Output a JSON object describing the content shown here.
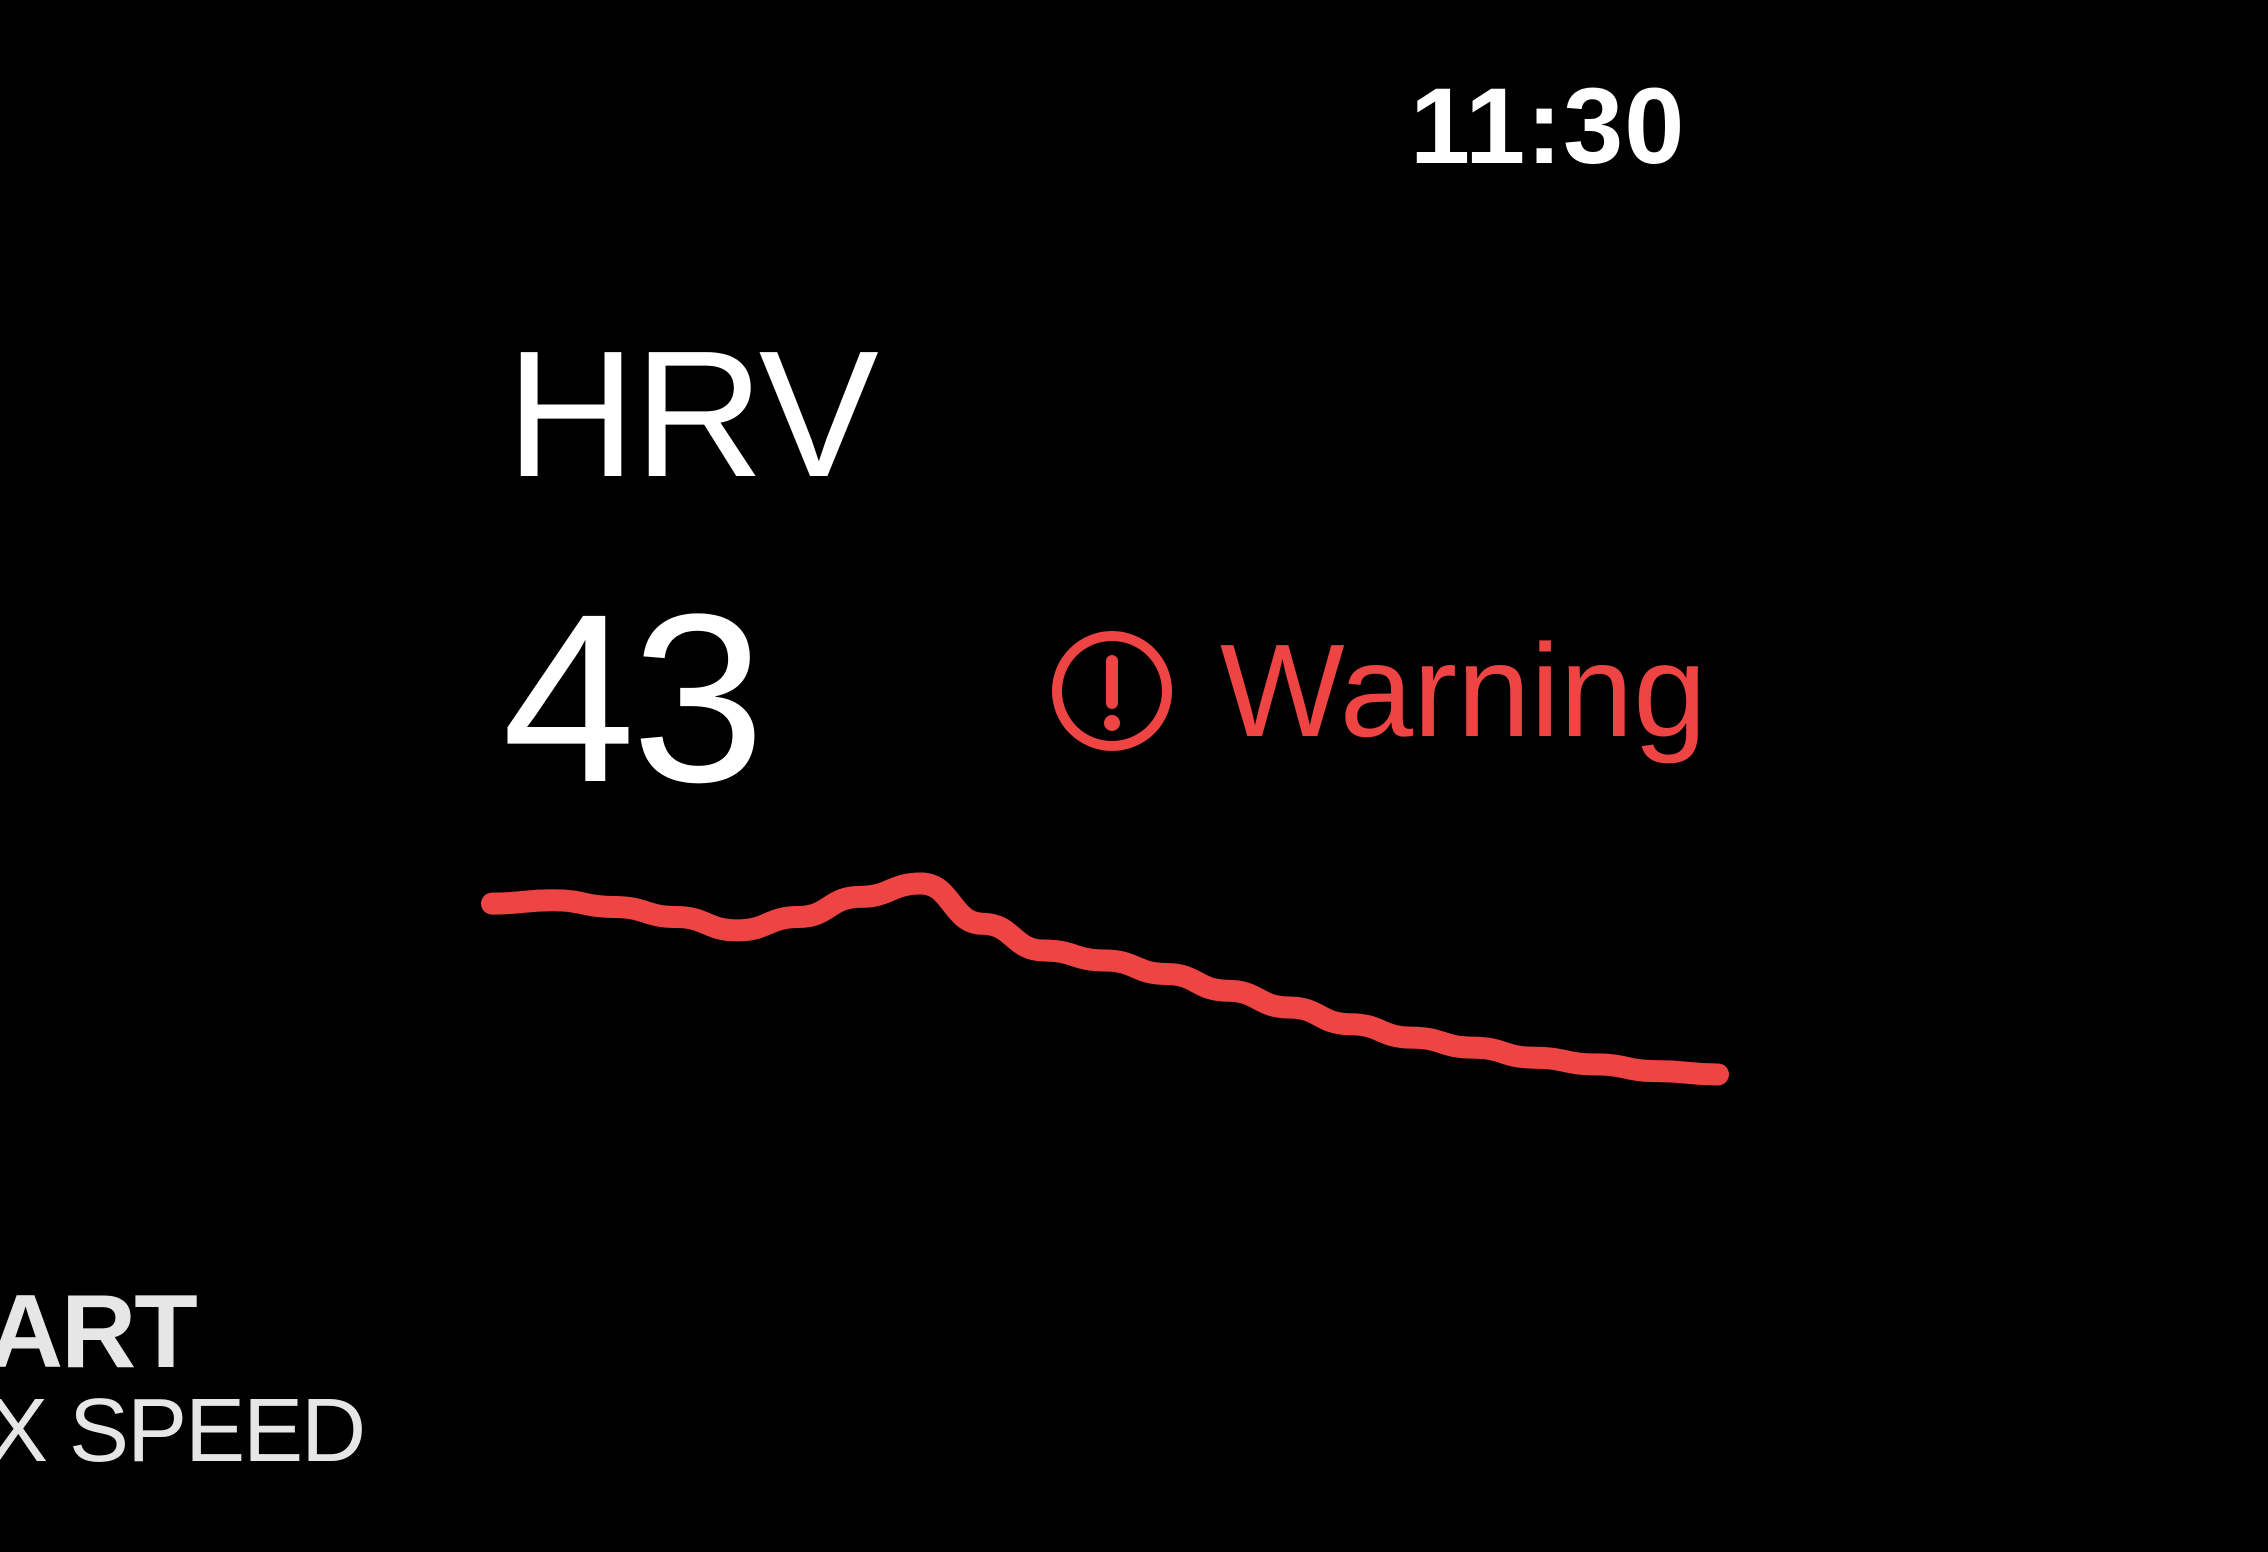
{
  "status_bar": {
    "time": "11:30"
  },
  "metric": {
    "label": "HRV",
    "value": "43"
  },
  "alert": {
    "icon": "exclamation-circle-icon",
    "text": "Warning",
    "color": "#ee4444"
  },
  "chart_data": {
    "type": "line",
    "title": "",
    "xlabel": "",
    "ylabel": "",
    "x": [
      0,
      1,
      2,
      3,
      4,
      5,
      6,
      7,
      8,
      9,
      10,
      11,
      12,
      13,
      14,
      15,
      16,
      17,
      18,
      19,
      20
    ],
    "series": [
      {
        "values": [
          0.84,
          0.85,
          0.83,
          0.8,
          0.76,
          0.8,
          0.86,
          0.9,
          0.78,
          0.7,
          0.67,
          0.63,
          0.58,
          0.53,
          0.48,
          0.44,
          0.41,
          0.38,
          0.36,
          0.34,
          0.33
        ],
        "color": "#ee4444"
      }
    ],
    "grid": false,
    "legend": "none"
  },
  "overlay": {
    "brand_name": "ART",
    "brand_sub": "X SPEED"
  }
}
